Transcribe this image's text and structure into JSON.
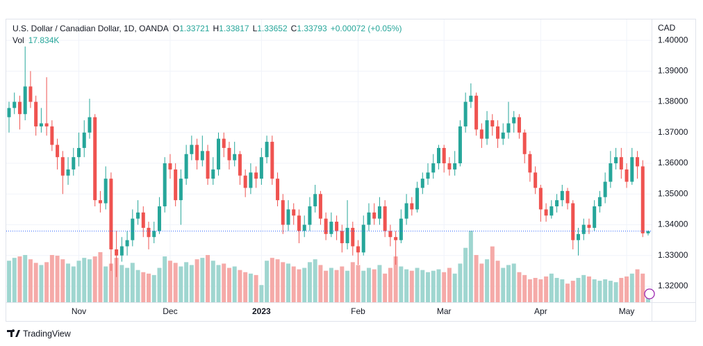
{
  "chart_data": {
    "type": "candlestick",
    "header": {
      "symbol": "U.S. Dollar / Canadian Dollar, 1D, OANDA",
      "ohlc_legend": [
        {
          "label": "O",
          "value": "1.33721"
        },
        {
          "label": "H",
          "value": "1.33817"
        },
        {
          "label": "L",
          "value": "1.33652"
        },
        {
          "label": "C",
          "value": "1.33793"
        }
      ],
      "change": "+0.00072 (+0.05%)",
      "vol_label": "Vol",
      "vol_value": "17.834K"
    },
    "currency": "CAD",
    "brand": "TradingView",
    "up_color": "#26a69a",
    "down_color": "#ef5350",
    "vol_up_color": "#9fd6d0",
    "vol_down_color": "#f5aaa8",
    "last_price_color": "#2962ff",
    "grid": true,
    "ylim": [
      1.3148,
      1.4068
    ],
    "yticks": [
      {
        "value": 1.32,
        "label": "1.32000"
      },
      {
        "value": 1.33,
        "label": "1.33000"
      },
      {
        "value": 1.34,
        "label": "1.34000"
      },
      {
        "value": 1.35,
        "label": "1.35000"
      },
      {
        "value": 1.36,
        "label": "1.36000"
      },
      {
        "value": 1.37,
        "label": "1.37000"
      },
      {
        "value": 1.38,
        "label": "1.38000"
      },
      {
        "value": 1.39,
        "label": "1.39000"
      },
      {
        "value": 1.4,
        "label": "1.40000"
      }
    ],
    "categories": [
      null,
      null,
      null,
      null,
      null,
      null,
      null,
      null,
      null,
      null,
      null,
      null,
      null,
      "Nov",
      null,
      null,
      null,
      null,
      null,
      null,
      null,
      null,
      null,
      null,
      null,
      null,
      null,
      null,
      null,
      null,
      "Dec",
      null,
      null,
      null,
      null,
      null,
      null,
      null,
      null,
      null,
      null,
      null,
      null,
      null,
      null,
      null,
      null,
      "2023",
      null,
      null,
      null,
      null,
      null,
      null,
      null,
      null,
      null,
      null,
      null,
      null,
      null,
      null,
      null,
      null,
      null,
      "Feb",
      null,
      null,
      null,
      null,
      null,
      null,
      null,
      null,
      null,
      null,
      null,
      null,
      null,
      null,
      null,
      "Mar",
      null,
      null,
      null,
      null,
      null,
      null,
      null,
      null,
      null,
      null,
      null,
      null,
      null,
      null,
      null,
      null,
      null,
      "Apr",
      null,
      null,
      null,
      null,
      null,
      null,
      null,
      null,
      null,
      null,
      null,
      null,
      null,
      null,
      null,
      "May",
      null,
      null,
      null,
      null
    ],
    "ohlc": [
      [
        1.375,
        1.38,
        1.37,
        1.378
      ],
      [
        1.378,
        1.383,
        1.376,
        1.38
      ],
      [
        1.38,
        1.382,
        1.371,
        1.376
      ],
      [
        1.376,
        1.398,
        1.374,
        1.385
      ],
      [
        1.385,
        1.39,
        1.378,
        1.38
      ],
      [
        1.38,
        1.382,
        1.369,
        1.372
      ],
      [
        1.372,
        1.378,
        1.37,
        1.373
      ],
      [
        1.373,
        1.388,
        1.369,
        1.372
      ],
      [
        1.372,
        1.374,
        1.364,
        1.366
      ],
      [
        1.366,
        1.368,
        1.358,
        1.362
      ],
      [
        1.362,
        1.364,
        1.35,
        1.356
      ],
      [
        1.356,
        1.362,
        1.353,
        1.358
      ],
      [
        1.358,
        1.365,
        1.356,
        1.362
      ],
      [
        1.362,
        1.37,
        1.359,
        1.365
      ],
      [
        1.365,
        1.374,
        1.362,
        1.37
      ],
      [
        1.37,
        1.381,
        1.368,
        1.375
      ],
      [
        1.375,
        1.376,
        1.346,
        1.348
      ],
      [
        1.348,
        1.351,
        1.344,
        1.347
      ],
      [
        1.347,
        1.359,
        1.345,
        1.355
      ],
      [
        1.355,
        1.357,
        1.325,
        1.332
      ],
      [
        1.332,
        1.338,
        1.323,
        1.33
      ],
      [
        1.33,
        1.336,
        1.328,
        1.333
      ],
      [
        1.333,
        1.338,
        1.33,
        1.335
      ],
      [
        1.335,
        1.345,
        1.333,
        1.342
      ],
      [
        1.342,
        1.348,
        1.34,
        1.344
      ],
      [
        1.344,
        1.346,
        1.336,
        1.339
      ],
      [
        1.339,
        1.341,
        1.332,
        1.336
      ],
      [
        1.336,
        1.341,
        1.334,
        1.338
      ],
      [
        1.338,
        1.349,
        1.337,
        1.346
      ],
      [
        1.346,
        1.362,
        1.344,
        1.36
      ],
      [
        1.36,
        1.363,
        1.355,
        1.358
      ],
      [
        1.358,
        1.36,
        1.346,
        1.348
      ],
      [
        1.348,
        1.358,
        1.34,
        1.355
      ],
      [
        1.355,
        1.366,
        1.353,
        1.363
      ],
      [
        1.363,
        1.369,
        1.361,
        1.366
      ],
      [
        1.366,
        1.368,
        1.358,
        1.361
      ],
      [
        1.361,
        1.369,
        1.359,
        1.364
      ],
      [
        1.364,
        1.366,
        1.353,
        1.355
      ],
      [
        1.355,
        1.362,
        1.353,
        1.358
      ],
      [
        1.358,
        1.37,
        1.356,
        1.368
      ],
      [
        1.368,
        1.37,
        1.362,
        1.365
      ],
      [
        1.365,
        1.367,
        1.358,
        1.361
      ],
      [
        1.361,
        1.367,
        1.359,
        1.363
      ],
      [
        1.363,
        1.364,
        1.353,
        1.356
      ],
      [
        1.356,
        1.358,
        1.349,
        1.352
      ],
      [
        1.352,
        1.36,
        1.35,
        1.357
      ],
      [
        1.357,
        1.359,
        1.352,
        1.355
      ],
      [
        1.355,
        1.365,
        1.353,
        1.362
      ],
      [
        1.362,
        1.369,
        1.36,
        1.367
      ],
      [
        1.367,
        1.369,
        1.353,
        1.355
      ],
      [
        1.355,
        1.357,
        1.346,
        1.348
      ],
      [
        1.348,
        1.35,
        1.337,
        1.34
      ],
      [
        1.34,
        1.348,
        1.338,
        1.345
      ],
      [
        1.345,
        1.347,
        1.34,
        1.343
      ],
      [
        1.343,
        1.345,
        1.334,
        1.338
      ],
      [
        1.338,
        1.343,
        1.336,
        1.34
      ],
      [
        1.34,
        1.349,
        1.338,
        1.346
      ],
      [
        1.346,
        1.353,
        1.344,
        1.35
      ],
      [
        1.35,
        1.351,
        1.34,
        1.342
      ],
      [
        1.342,
        1.344,
        1.335,
        1.337
      ],
      [
        1.337,
        1.344,
        1.336,
        1.341
      ],
      [
        1.341,
        1.343,
        1.335,
        1.338
      ],
      [
        1.338,
        1.34,
        1.331,
        1.334
      ],
      [
        1.334,
        1.348,
        1.332,
        1.339
      ],
      [
        1.339,
        1.341,
        1.33,
        1.333
      ],
      [
        1.333,
        1.335,
        1.327,
        1.331
      ],
      [
        1.331,
        1.343,
        1.33,
        1.34
      ],
      [
        1.34,
        1.347,
        1.338,
        1.344
      ],
      [
        1.344,
        1.347,
        1.34,
        1.342
      ],
      [
        1.342,
        1.349,
        1.34,
        1.346
      ],
      [
        1.346,
        1.348,
        1.336,
        1.338
      ],
      [
        1.338,
        1.34,
        1.333,
        1.336
      ],
      [
        1.336,
        1.338,
        1.327,
        1.335
      ],
      [
        1.335,
        1.345,
        1.334,
        1.342
      ],
      [
        1.342,
        1.35,
        1.34,
        1.347
      ],
      [
        1.347,
        1.349,
        1.343,
        1.345
      ],
      [
        1.345,
        1.354,
        1.344,
        1.352
      ],
      [
        1.352,
        1.357,
        1.35,
        1.355
      ],
      [
        1.355,
        1.36,
        1.353,
        1.357
      ],
      [
        1.357,
        1.363,
        1.355,
        1.36
      ],
      [
        1.36,
        1.366,
        1.358,
        1.365
      ],
      [
        1.365,
        1.366,
        1.357,
        1.36
      ],
      [
        1.36,
        1.362,
        1.356,
        1.358
      ],
      [
        1.358,
        1.364,
        1.356,
        1.36
      ],
      [
        1.36,
        1.374,
        1.359,
        1.372
      ],
      [
        1.372,
        1.383,
        1.37,
        1.38
      ],
      [
        1.38,
        1.386,
        1.378,
        1.382
      ],
      [
        1.382,
        1.383,
        1.369,
        1.371
      ],
      [
        1.371,
        1.373,
        1.365,
        1.368
      ],
      [
        1.368,
        1.377,
        1.366,
        1.374
      ],
      [
        1.374,
        1.376,
        1.369,
        1.372
      ],
      [
        1.372,
        1.374,
        1.365,
        1.368
      ],
      [
        1.368,
        1.373,
        1.366,
        1.37
      ],
      [
        1.37,
        1.38,
        1.368,
        1.373
      ],
      [
        1.373,
        1.377,
        1.37,
        1.375
      ],
      [
        1.375,
        1.376,
        1.368,
        1.37
      ],
      [
        1.37,
        1.371,
        1.36,
        1.363
      ],
      [
        1.363,
        1.364,
        1.354,
        1.357
      ],
      [
        1.357,
        1.359,
        1.35,
        1.352
      ],
      [
        1.352,
        1.353,
        1.341,
        1.345
      ],
      [
        1.345,
        1.347,
        1.341,
        1.343
      ],
      [
        1.343,
        1.348,
        1.342,
        1.346
      ],
      [
        1.346,
        1.35,
        1.344,
        1.348
      ],
      [
        1.348,
        1.353,
        1.346,
        1.351
      ],
      [
        1.351,
        1.352,
        1.345,
        1.347
      ],
      [
        1.347,
        1.348,
        1.332,
        1.335
      ],
      [
        1.335,
        1.339,
        1.33,
        1.337
      ],
      [
        1.337,
        1.342,
        1.335,
        1.34
      ],
      [
        1.34,
        1.342,
        1.337,
        1.339
      ],
      [
        1.339,
        1.348,
        1.338,
        1.346
      ],
      [
        1.346,
        1.351,
        1.344,
        1.349
      ],
      [
        1.349,
        1.357,
        1.347,
        1.354
      ],
      [
        1.354,
        1.364,
        1.352,
        1.36
      ],
      [
        1.36,
        1.365,
        1.358,
        1.362
      ],
      [
        1.362,
        1.365,
        1.355,
        1.358
      ],
      [
        1.358,
        1.36,
        1.352,
        1.354
      ],
      [
        1.354,
        1.365,
        1.353,
        1.362
      ],
      [
        1.362,
        1.364,
        1.355,
        1.359
      ],
      [
        1.359,
        1.361,
        1.336,
        1.33721
      ],
      [
        1.33721,
        1.33817,
        1.33652,
        1.33793
      ]
    ],
    "volume": [
      58,
      62,
      64,
      66,
      60,
      55,
      52,
      56,
      66,
      65,
      60,
      54,
      50,
      58,
      62,
      60,
      64,
      70,
      50,
      54,
      62,
      52,
      48,
      55,
      45,
      42,
      40,
      38,
      48,
      64,
      58,
      55,
      50,
      56,
      52,
      60,
      62,
      66,
      58,
      52,
      54,
      48,
      50,
      45,
      42,
      40,
      38,
      24,
      58,
      62,
      60,
      56,
      54,
      50,
      46,
      48,
      56,
      60,
      52,
      44,
      48,
      45,
      50,
      44,
      56,
      52,
      44,
      48,
      46,
      52,
      40,
      48,
      64,
      50,
      46,
      44,
      48,
      45,
      42,
      44,
      46,
      42,
      48,
      40,
      54,
      76,
      100,
      66,
      54,
      60,
      78,
      58,
      48,
      52,
      54,
      42,
      38,
      32,
      34,
      32,
      36,
      40,
      34,
      32,
      26,
      30,
      34,
      38,
      36,
      32,
      30,
      32,
      30,
      28,
      34,
      36,
      40,
      46,
      40,
      17.834
    ]
  }
}
